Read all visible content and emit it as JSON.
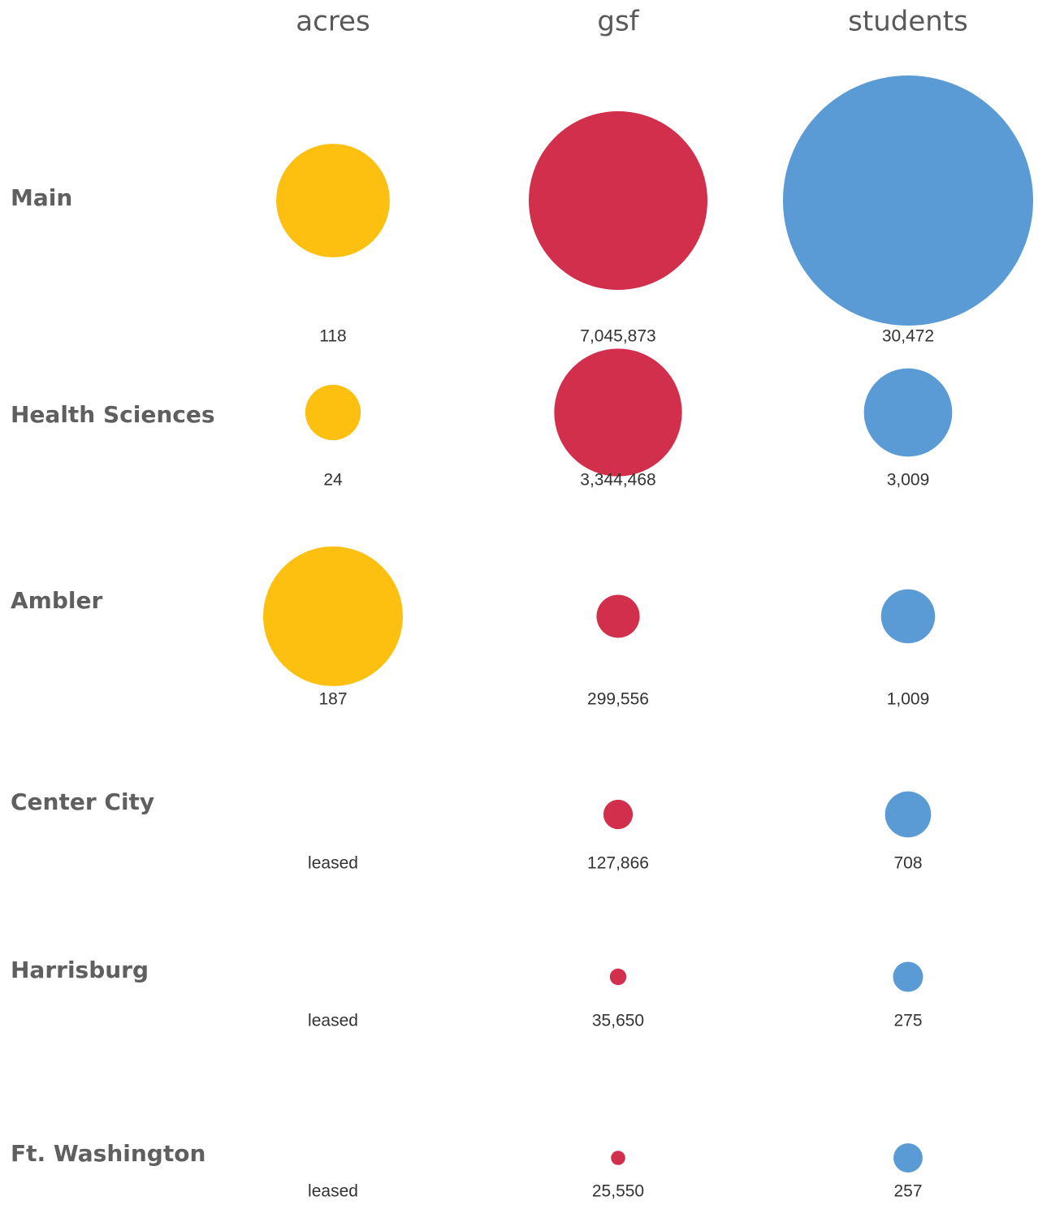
{
  "chart_data": {
    "type": "bubble",
    "categories": [
      "Main",
      "Health Sciences",
      "Ambler",
      "Center City",
      "Harrisburg",
      "Ft. Washington"
    ],
    "series": [
      {
        "name": "acres",
        "color": "#fdc010",
        "values": [
          118,
          24,
          187,
          null,
          null,
          null
        ],
        "value_labels": [
          "118",
          "24",
          "187",
          "leased",
          "leased",
          "leased"
        ]
      },
      {
        "name": "gsf",
        "color": "#d12f4c",
        "values": [
          7045873,
          3344468,
          299556,
          127866,
          35650,
          25550
        ],
        "value_labels": [
          "7,045,873",
          "3,344,468",
          "299,556",
          "127,866",
          "35,650",
          "25,550"
        ]
      },
      {
        "name": "students",
        "color": "#5b9bd5",
        "values": [
          30472,
          3009,
          1009,
          708,
          275,
          257
        ],
        "value_labels": [
          "30,472",
          "3,009",
          "1,009",
          "708",
          "275",
          "257"
        ]
      }
    ]
  }
}
